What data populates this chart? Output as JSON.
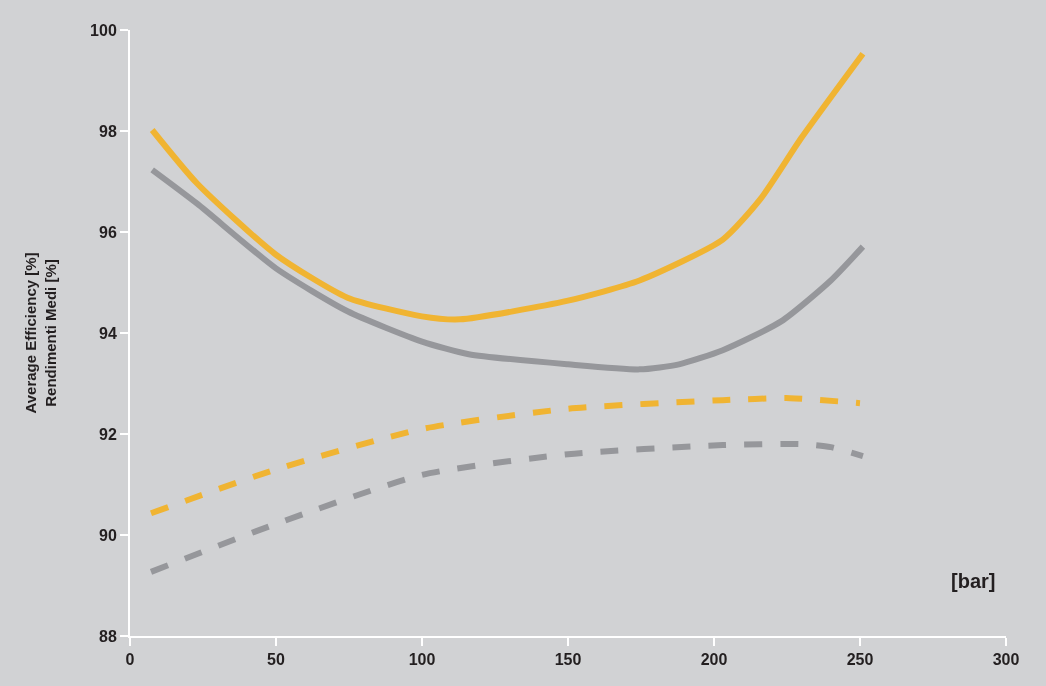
{
  "chart_data": {
    "type": "line",
    "xlabel": "[bar]",
    "ylabel": "Average Efficiency [%]\nRendimenti Medi [%]",
    "xlim": [
      0,
      300
    ],
    "xticks": [
      0,
      50,
      100,
      150,
      200,
      250,
      300
    ],
    "ylim": [
      88,
      100
    ],
    "yticks": [
      88,
      90,
      92,
      94,
      96,
      98,
      100
    ],
    "grid": false,
    "series": [
      {
        "color": "#f0b432",
        "line_style": "solid",
        "x": [
          7.6,
          23,
          50,
          74.5,
          100,
          113,
          150,
          174.5,
          203,
          216,
          230,
          251
        ],
        "values": [
          98.02,
          96.96,
          95.55,
          94.7,
          94.33,
          94.27,
          94.64,
          95.04,
          95.85,
          96.66,
          97.87,
          99.53
        ]
      },
      {
        "color": "#96979b",
        "line_style": "solid",
        "x": [
          7.6,
          23,
          50,
          74.5,
          100,
          116,
          150,
          174.5,
          188,
          203,
          223,
          240,
          251
        ],
        "values": [
          97.23,
          96.56,
          95.28,
          94.43,
          93.83,
          93.58,
          93.38,
          93.28,
          93.38,
          93.66,
          94.23,
          95.04,
          95.71
        ]
      },
      {
        "color": "#f0b432",
        "line_style": "dashed",
        "x": [
          7.2,
          50,
          100,
          150,
          203,
          226,
          250
        ],
        "values": [
          90.43,
          91.3,
          92.1,
          92.5,
          92.67,
          92.71,
          92.61
        ]
      },
      {
        "color": "#96979b",
        "line_style": "dashed",
        "x": [
          7.2,
          50,
          100,
          150,
          203,
          230,
          240,
          251
        ],
        "values": [
          89.27,
          90.22,
          91.19,
          91.6,
          91.78,
          91.8,
          91.74,
          91.56
        ]
      }
    ]
  }
}
